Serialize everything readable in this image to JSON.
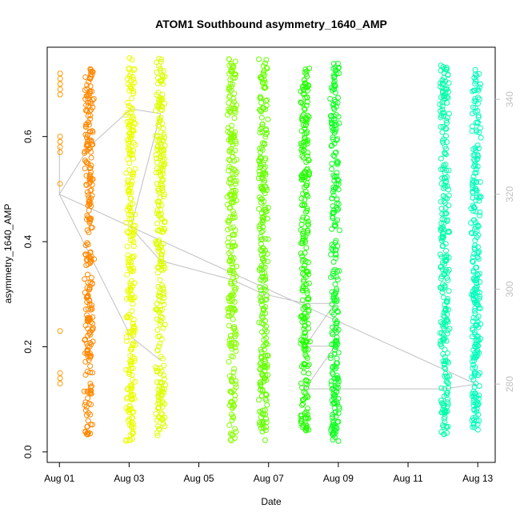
{
  "chart_data": {
    "type": "scatter",
    "title": "ATOM1 Southbound asymmetry_1640_AMP",
    "xlabel": "Date",
    "ylabel": "asymmetry_1640_AMP",
    "x_tick_labels": [
      "Aug 01",
      "Aug 03",
      "Aug 05",
      "Aug 07",
      "Aug 09",
      "Aug 11",
      "Aug 13"
    ],
    "x_tick_days": [
      1,
      3,
      5,
      7,
      9,
      11,
      13
    ],
    "xlim_days": [
      0.65,
      13.5
    ],
    "ylim": [
      -0.02,
      0.77
    ],
    "y_ticks": [
      0.0,
      0.2,
      0.4,
      0.6
    ],
    "y_tick_labels": [
      "0.0",
      "0.2",
      "0.4",
      "0.6"
    ],
    "y2_ticks": [
      280,
      300,
      320,
      340
    ],
    "y2_tick_labels": [
      "280",
      "300",
      "320",
      "340"
    ],
    "y2lim": [
      263.5,
      351
    ],
    "y2_color": "#c0c0c0",
    "grid": false,
    "marker": "open-circle",
    "clusters": [
      {
        "day": 1.02,
        "color": "#ff9900",
        "y_min": 0.13,
        "y_max": 0.72,
        "sparse": true,
        "values": [
          0.72,
          0.71,
          0.7,
          0.69,
          0.68,
          0.6,
          0.59,
          0.58,
          0.57,
          0.51,
          0.23,
          0.15,
          0.14,
          0.13
        ]
      },
      {
        "day": 1.85,
        "color": "#ff8800",
        "y_min": 0.03,
        "y_max": 0.73
      },
      {
        "day": 3.05,
        "color": "#eaff00",
        "y_min": 0.02,
        "y_max": 0.75
      },
      {
        "day": 3.9,
        "color": "#ddff00",
        "y_min": 0.03,
        "y_max": 0.75
      },
      {
        "day": 5.95,
        "color": "#88ff00",
        "y_min": 0.02,
        "y_max": 0.75
      },
      {
        "day": 6.85,
        "color": "#66ff00",
        "y_min": 0.02,
        "y_max": 0.75
      },
      {
        "day": 8.05,
        "color": "#22ff00",
        "y_min": 0.04,
        "y_max": 0.73
      },
      {
        "day": 8.9,
        "color": "#11ff22",
        "y_min": 0.02,
        "y_max": 0.74
      },
      {
        "day": 12.05,
        "color": "#00ffaa",
        "y_min": 0.03,
        "y_max": 0.74
      },
      {
        "day": 12.95,
        "color": "#00ffbb",
        "y_min": 0.04,
        "y_max": 0.73
      }
    ],
    "secondary_line": {
      "color": "#c0c0c0",
      "points": [
        [
          1.0,
          330
        ],
        [
          1.0,
          320
        ],
        [
          1.85,
          330
        ],
        [
          3.05,
          338
        ],
        [
          3.9,
          337
        ],
        [
          3.05,
          313
        ],
        [
          3.9,
          306
        ],
        [
          5.95,
          302
        ],
        [
          6.85,
          299
        ],
        [
          8.05,
          297
        ],
        [
          8.9,
          297
        ],
        [
          8.05,
          288
        ],
        [
          8.9,
          288
        ],
        [
          8.05,
          279
        ],
        [
          12.05,
          279
        ],
        [
          12.95,
          280
        ],
        [
          1.0,
          320
        ],
        [
          3.05,
          290
        ],
        [
          3.9,
          285
        ]
      ]
    }
  }
}
